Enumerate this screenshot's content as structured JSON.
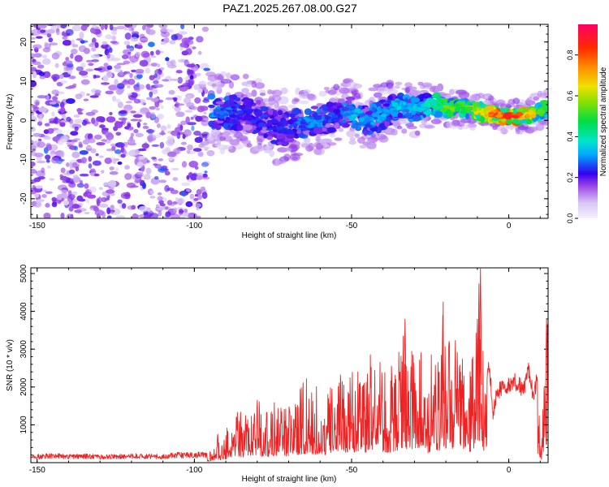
{
  "title": "PAZ1.2025.267.08.00.G27",
  "chart_data": [
    {
      "type": "heatmap",
      "xlabel": "Height of straight line (km)",
      "ylabel": "Frequency (Hz)",
      "xlim": [
        -152,
        12.5
      ],
      "ylim": [
        -25,
        24.5
      ],
      "xticks": [
        -150,
        -100,
        -50,
        0
      ],
      "yticks": [
        -20,
        -10,
        0,
        10,
        20
      ],
      "grid": false,
      "colorbar": {
        "label": "Normalized spectral amplitude",
        "range": [
          0,
          0.95
        ],
        "ticks": [
          0.0,
          0.2,
          0.4,
          0.6,
          0.8
        ],
        "tick_labels": [
          "0.0",
          "0.2",
          "0.4",
          "0.6",
          "0.8"
        ]
      },
      "noise_region": {
        "x_from": -152,
        "x_to": -96,
        "typical_amplitude": 0.15,
        "max_amplitude": 0.32
      },
      "ridge": [
        {
          "x": -95,
          "freq": 2.0,
          "width": 7,
          "peak": 0.3
        },
        {
          "x": -90,
          "freq": 2.0,
          "width": 6,
          "peak": 0.3
        },
        {
          "x": -85,
          "freq": 2.0,
          "width": 6,
          "peak": 0.25
        },
        {
          "x": -80,
          "freq": 1.0,
          "width": 6,
          "peak": 0.25
        },
        {
          "x": -75,
          "freq": -1.5,
          "width": 6,
          "peak": 0.25
        },
        {
          "x": -70,
          "freq": -2.0,
          "width": 6,
          "peak": 0.25
        },
        {
          "x": -65,
          "freq": -0.5,
          "width": 5,
          "peak": 0.3
        },
        {
          "x": -60,
          "freq": 0.0,
          "width": 5,
          "peak": 0.3
        },
        {
          "x": -55,
          "freq": 1.0,
          "width": 5,
          "peak": 0.25
        },
        {
          "x": -50,
          "freq": 2.5,
          "width": 5,
          "peak": 0.35
        },
        {
          "x": -45,
          "freq": -0.5,
          "width": 5,
          "peak": 0.3
        },
        {
          "x": -40,
          "freq": 1.5,
          "width": 5,
          "peak": 0.35
        },
        {
          "x": -35,
          "freq": 4.0,
          "width": 4,
          "peak": 0.35
        },
        {
          "x": -30,
          "freq": 2.5,
          "width": 4,
          "peak": 0.35
        },
        {
          "x": -25,
          "freq": 4.5,
          "width": 4,
          "peak": 0.4
        },
        {
          "x": -20,
          "freq": 3.0,
          "width": 3,
          "peak": 0.55
        },
        {
          "x": -15,
          "freq": 3.0,
          "width": 3,
          "peak": 0.55
        },
        {
          "x": -10,
          "freq": 2.5,
          "width": 3,
          "peak": 0.65
        },
        {
          "x": -5,
          "freq": 1.5,
          "width": 2.5,
          "peak": 0.8
        },
        {
          "x": 0,
          "freq": 1.0,
          "width": 2.5,
          "peak": 0.9
        },
        {
          "x": 5,
          "freq": 1.0,
          "width": 2.5,
          "peak": 0.75
        },
        {
          "x": 10,
          "freq": 2.5,
          "width": 3,
          "peak": 0.6
        },
        {
          "x": 12.5,
          "freq": 3.0,
          "width": 3,
          "peak": 0.5
        }
      ]
    },
    {
      "type": "line",
      "xlabel": "Height of straight line (km)",
      "ylabel": "SNR (10 * v/v)",
      "xlim": [
        -152,
        12.5
      ],
      "ylim": [
        0,
        5150
      ],
      "xticks": [
        -150,
        -100,
        -50,
        0
      ],
      "yticks": [
        1000,
        2000,
        3000,
        4000,
        5000
      ],
      "grid": false,
      "series": [
        {
          "color": "#ee2222",
          "x": [
            -152,
            -145,
            -140,
            -135,
            -130,
            -125,
            -120,
            -115,
            -110,
            -105,
            -100,
            -96,
            -94,
            -93,
            -92,
            -90,
            -88,
            -86,
            -84,
            -82,
            -80,
            -78,
            -76,
            -74,
            -72,
            -70,
            -68,
            -66,
            -64,
            -62,
            -60,
            -58,
            -56,
            -54,
            -52,
            -50,
            -48,
            -46,
            -44,
            -42,
            -40,
            -38,
            -36,
            -34,
            -33,
            -32,
            -30,
            -28,
            -26,
            -24,
            -22,
            -21,
            -20,
            -18,
            -16,
            -14,
            -12,
            -10,
            -9,
            -8,
            -7,
            -6,
            -5,
            -4,
            -3,
            -2,
            -1,
            0,
            1,
            2,
            3,
            4,
            5,
            6,
            7,
            8,
            9,
            10,
            10.5,
            11,
            11.5,
            12,
            12.5
          ],
          "y": [
            150,
            180,
            160,
            170,
            150,
            160,
            180,
            170,
            160,
            200,
            200,
            210,
            400,
            1000,
            500,
            800,
            1100,
            1300,
            1200,
            1500,
            1600,
            1200,
            1400,
            1500,
            1700,
            1300,
            1600,
            1800,
            2100,
            1700,
            2000,
            1600,
            1900,
            2400,
            1800,
            2200,
            2600,
            2100,
            2800,
            3200,
            2400,
            2200,
            2600,
            3100,
            3800,
            2300,
            2900,
            3500,
            2000,
            3000,
            2600,
            3900,
            3100,
            2900,
            3200,
            2600,
            2400,
            3800,
            5150,
            2700,
            2500,
            2300,
            1300,
            1800,
            1900,
            2000,
            1900,
            2100,
            2000,
            2150,
            2100,
            2000,
            2000,
            2600,
            2100,
            1700,
            2300,
            900,
            650,
            2500,
            1400,
            3800,
            3000
          ]
        }
      ]
    }
  ]
}
